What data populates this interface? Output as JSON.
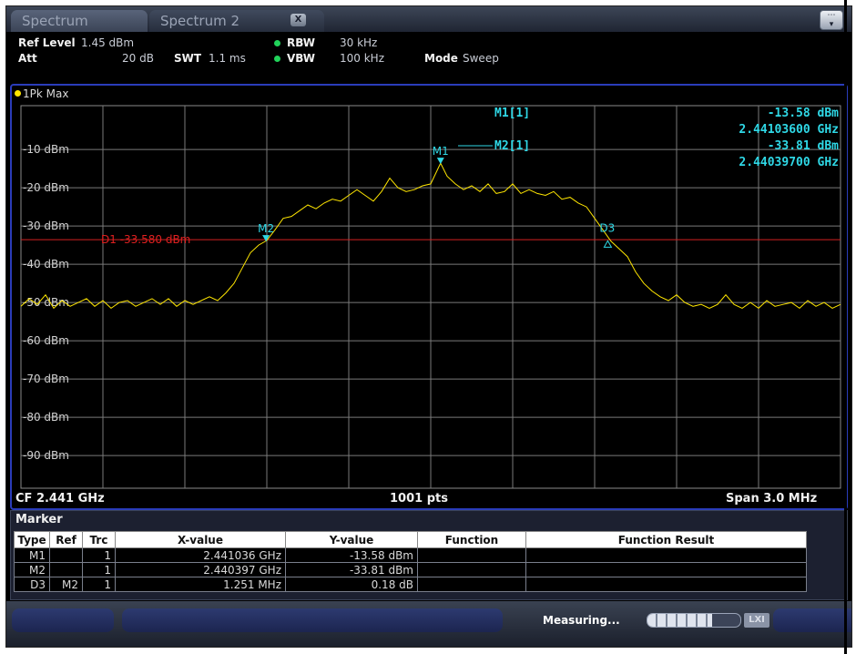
{
  "tabs": {
    "active": "Spectrum",
    "second": "Spectrum 2",
    "close_icon": "X",
    "menu_icon": "overflow-menu-icon"
  },
  "settings": {
    "ref_level_label": "Ref Level",
    "ref_level_value": "1.45 dBm",
    "att_label": "Att",
    "att_value": "20 dB",
    "swt_label": "SWT",
    "swt_value": "1.1 ms",
    "rbw_label": "RBW",
    "rbw_value": "30 kHz",
    "vbw_label": "VBW",
    "vbw_value": "100 kHz",
    "mode_label": "Mode",
    "mode_value": "Sweep"
  },
  "trace": {
    "label": "1Pk Max",
    "color": "#ffe600"
  },
  "markers_readout": {
    "m1_name": "M1[1]",
    "m1_level": "-13.58 dBm",
    "m1_freq": "2.44103600 GHz",
    "m2_name": "M2[1]",
    "m2_level": "-33.81 dBm",
    "m2_freq": "2.44039700 GHz"
  },
  "display_line": "D1 -33.580 dBm",
  "footer": {
    "cf": "CF 2.441 GHz",
    "points": "1001 pts",
    "span": "Span 3.0 MHz"
  },
  "chart_data": {
    "type": "line",
    "y_ticks": [
      "-10 dBm",
      "-20 dBm",
      "-30 dBm",
      "-40 dBm",
      "-50 dBm",
      "-60 dBm",
      "-70 dBm",
      "-80 dBm",
      "-90 dBm"
    ],
    "ylim": [
      -98.55,
      1.45
    ],
    "xlim_mhz": [
      -1.5,
      1.5
    ],
    "grid": true,
    "display_line_dbm": -33.58,
    "marker_labels": [
      "M1",
      "M2",
      "D3"
    ],
    "markers": [
      {
        "name": "M1",
        "offset_mhz": 0.036,
        "level_dbm": -13.58,
        "symbol": "down"
      },
      {
        "name": "M2",
        "offset_mhz": -0.603,
        "level_dbm": -33.81,
        "symbol": "down"
      },
      {
        "name": "D3",
        "offset_mhz": 0.648,
        "level_dbm": -33.63,
        "symbol": "delta"
      }
    ],
    "trace_points": [
      [
        -1.5,
        -51.0
      ],
      [
        -1.47,
        -49.0
      ],
      [
        -1.44,
        -50.5
      ],
      [
        -1.41,
        -48.0
      ],
      [
        -1.38,
        -51.5
      ],
      [
        -1.35,
        -49.5
      ],
      [
        -1.32,
        -51.0
      ],
      [
        -1.29,
        -50.0
      ],
      [
        -1.26,
        -49.0
      ],
      [
        -1.23,
        -51.0
      ],
      [
        -1.2,
        -49.5
      ],
      [
        -1.17,
        -51.5
      ],
      [
        -1.14,
        -50.0
      ],
      [
        -1.11,
        -49.5
      ],
      [
        -1.08,
        -51.0
      ],
      [
        -1.05,
        -50.0
      ],
      [
        -1.02,
        -49.0
      ],
      [
        -0.99,
        -50.5
      ],
      [
        -0.96,
        -49.0
      ],
      [
        -0.93,
        -51.0
      ],
      [
        -0.9,
        -49.5
      ],
      [
        -0.87,
        -50.5
      ],
      [
        -0.84,
        -49.5
      ],
      [
        -0.81,
        -48.5
      ],
      [
        -0.78,
        -49.5
      ],
      [
        -0.75,
        -47.5
      ],
      [
        -0.72,
        -45.0
      ],
      [
        -0.69,
        -41.0
      ],
      [
        -0.66,
        -37.0
      ],
      [
        -0.63,
        -35.0
      ],
      [
        -0.6,
        -33.8
      ],
      [
        -0.57,
        -31.0
      ],
      [
        -0.54,
        -28.0
      ],
      [
        -0.51,
        -27.5
      ],
      [
        -0.48,
        -26.0
      ],
      [
        -0.45,
        -24.5
      ],
      [
        -0.42,
        -25.5
      ],
      [
        -0.39,
        -24.0
      ],
      [
        -0.36,
        -23.0
      ],
      [
        -0.33,
        -23.5
      ],
      [
        -0.3,
        -22.0
      ],
      [
        -0.27,
        -20.5
      ],
      [
        -0.24,
        -22.0
      ],
      [
        -0.21,
        -23.5
      ],
      [
        -0.18,
        -21.0
      ],
      [
        -0.15,
        -17.5
      ],
      [
        -0.12,
        -20.0
      ],
      [
        -0.09,
        -21.0
      ],
      [
        -0.06,
        -20.5
      ],
      [
        -0.03,
        -19.5
      ],
      [
        0.0,
        -19.0
      ],
      [
        0.036,
        -13.58
      ],
      [
        0.06,
        -17.0
      ],
      [
        0.09,
        -19.0
      ],
      [
        0.12,
        -20.5
      ],
      [
        0.15,
        -19.5
      ],
      [
        0.18,
        -21.0
      ],
      [
        0.21,
        -19.0
      ],
      [
        0.24,
        -21.5
      ],
      [
        0.27,
        -21.0
      ],
      [
        0.3,
        -19.0
      ],
      [
        0.33,
        -21.5
      ],
      [
        0.36,
        -20.5
      ],
      [
        0.39,
        -21.5
      ],
      [
        0.42,
        -22.0
      ],
      [
        0.45,
        -21.0
      ],
      [
        0.48,
        -23.0
      ],
      [
        0.51,
        -22.5
      ],
      [
        0.54,
        -24.0
      ],
      [
        0.57,
        -25.0
      ],
      [
        0.6,
        -28.0
      ],
      [
        0.63,
        -31.0
      ],
      [
        0.66,
        -34.0
      ],
      [
        0.69,
        -36.0
      ],
      [
        0.72,
        -38.0
      ],
      [
        0.75,
        -42.0
      ],
      [
        0.78,
        -45.0
      ],
      [
        0.81,
        -47.0
      ],
      [
        0.84,
        -48.5
      ],
      [
        0.87,
        -49.5
      ],
      [
        0.9,
        -48.0
      ],
      [
        0.93,
        -50.0
      ],
      [
        0.96,
        -51.0
      ],
      [
        0.99,
        -50.5
      ],
      [
        1.02,
        -51.5
      ],
      [
        1.05,
        -50.5
      ],
      [
        1.08,
        -48.0
      ],
      [
        1.11,
        -50.5
      ],
      [
        1.14,
        -51.5
      ],
      [
        1.17,
        -50.0
      ],
      [
        1.2,
        -51.5
      ],
      [
        1.23,
        -49.5
      ],
      [
        1.26,
        -51.0
      ],
      [
        1.29,
        -50.5
      ],
      [
        1.32,
        -50.0
      ],
      [
        1.35,
        -51.5
      ],
      [
        1.38,
        -49.5
      ],
      [
        1.41,
        -51.0
      ],
      [
        1.44,
        -50.0
      ],
      [
        1.47,
        -51.5
      ],
      [
        1.5,
        -50.5
      ]
    ]
  },
  "marker_table": {
    "title": "Marker",
    "headers": [
      "Type",
      "Ref",
      "Trc",
      "X-value",
      "Y-value",
      "Function",
      "Function Result"
    ],
    "rows": [
      [
        "M1",
        "",
        "1",
        "2.441036 GHz",
        "-13.58 dBm",
        "",
        ""
      ],
      [
        "M2",
        "",
        "1",
        "2.440397 GHz",
        "-33.81 dBm",
        "",
        ""
      ],
      [
        "D3",
        "M2",
        "1",
        "1.251 MHz",
        "0.18 dB",
        "",
        ""
      ]
    ]
  },
  "status": {
    "text": "Measuring...",
    "progress": 0.7,
    "logo": "LXI"
  }
}
